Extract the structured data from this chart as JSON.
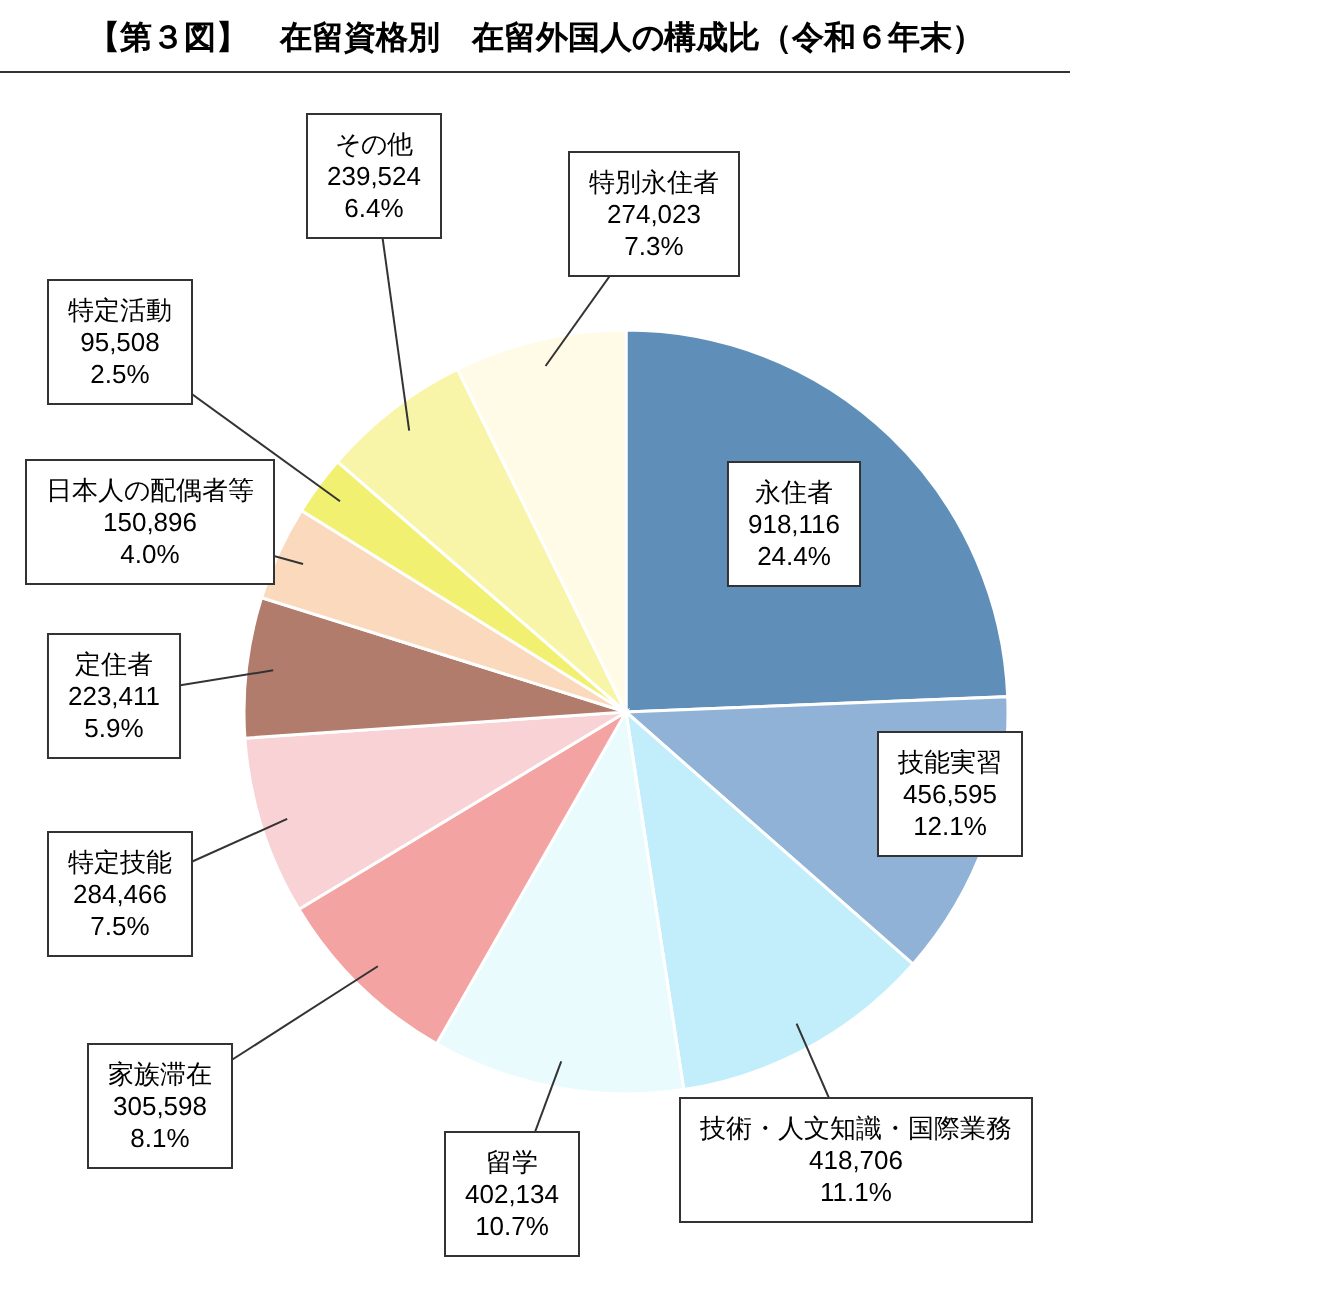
{
  "chart_data": {
    "type": "pie",
    "title": "【第３図】　在留資格別　在留外国人の構成比（令和６年末）",
    "categories": [
      "永住者",
      "技能実習",
      "技術・人文知識・国際業務",
      "留学",
      "家族滞在",
      "特定技能",
      "定住者",
      "日本人の配偶者等",
      "特定活動",
      "その他",
      "特別永住者"
    ],
    "values": [
      918116,
      456595,
      418706,
      402134,
      305598,
      284466,
      223411,
      150896,
      95508,
      239524,
      274023
    ],
    "value_labels": [
      "918,116\n24.4%",
      "456,595\n12.1%",
      "418,706\n11.1%",
      "402,134\n10.7%",
      "305,598\n8.1%",
      "284,466\n7.5%",
      "223,411\n5.9%",
      "150,896\n4.0%",
      "95,508\n2.5%",
      "239,524\n6.4%",
      "274,023\n7.3%"
    ],
    "colors": [
      "#5f8fb8",
      "#8fb2d6",
      "#c2eefc",
      "#e9fbfc",
      "#f4a3a3",
      "#f8d2d5",
      "#b27c6c",
      "#fbd9bc",
      "#f2f070",
      "#f8f5a8",
      "#fffbe6"
    ]
  }
}
